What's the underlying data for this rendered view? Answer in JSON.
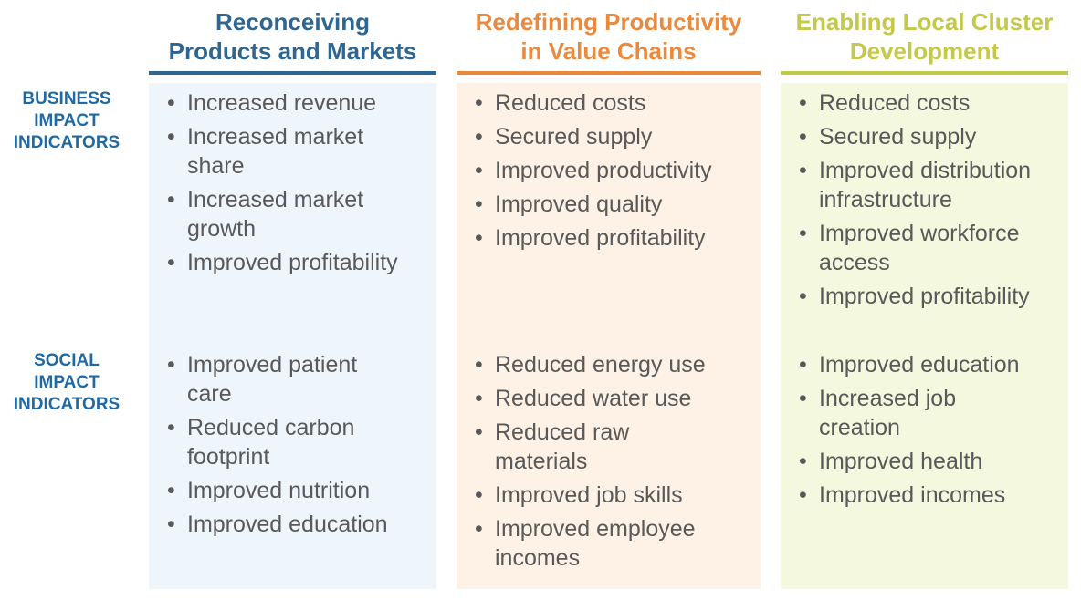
{
  "colors": {
    "label_blue": "#1f6aa5",
    "bullet_text": "#595959"
  },
  "row_labels": {
    "business": [
      "BUSINESS",
      "IMPACT",
      "INDICATORS"
    ],
    "social": [
      "SOCIAL",
      "IMPACT",
      "INDICATORS"
    ]
  },
  "columns": [
    {
      "title_lines": [
        "Reconceiving",
        "Products and Markets"
      ],
      "accent": "#2e6591",
      "panel_bg": "#eef5fb",
      "business": [
        "Increased revenue",
        "Increased market share",
        "Increased market growth",
        "Improved profitability"
      ],
      "social": [
        "Improved patient care",
        "Reduced carbon footprint",
        "Improved nutrition",
        "Improved education"
      ]
    },
    {
      "title_lines": [
        "Redefining Productivity",
        "in Value Chains"
      ],
      "accent": "#e98a3f",
      "panel_bg": "#fdf2e5",
      "business": [
        "Reduced costs",
        "Secured supply",
        "Improved productivity",
        "Improved quality",
        "Improved profitability"
      ],
      "social": [
        "Reduced energy use",
        "Reduced water use",
        "Reduced raw materials",
        "Improved job skills",
        "Improved employee incomes"
      ]
    },
    {
      "title_lines": [
        "Enabling Local Cluster",
        "Development"
      ],
      "accent": "#c4c94a",
      "panel_bg": "#f4f8df",
      "business": [
        "Reduced costs",
        "Secured supply",
        "Improved distribution infrastructure",
        "Improved workforce access",
        "Improved profitability"
      ],
      "social": [
        "Improved education",
        "Increased job creation",
        "Improved health",
        "Improved incomes"
      ]
    }
  ]
}
